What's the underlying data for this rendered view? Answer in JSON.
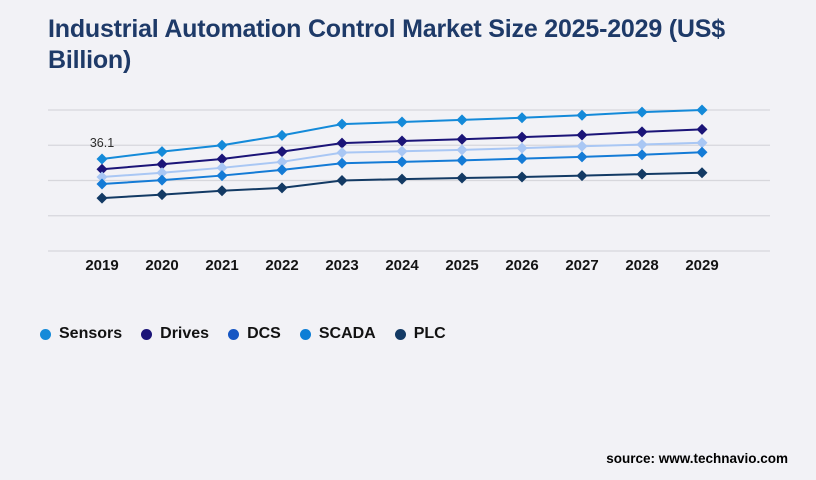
{
  "page": {
    "background": "#f2f2f6"
  },
  "header": {
    "title": "Industrial Automation Control Market Size 2025-2029 (US$ Billion)",
    "color": "#1e3a68"
  },
  "chart_data": {
    "type": "line",
    "title": "Industrial Automation Control Market Size 2025-2029 (US$ Billion)",
    "x": [
      2019,
      2020,
      2021,
      2022,
      2023,
      2024,
      2025,
      2026,
      2027,
      2028,
      2029
    ],
    "series": [
      {
        "name": "Sensors",
        "color": "#148ad9",
        "legend_color": "#148ad9",
        "values": [
          36.1,
          38.2,
          40.0,
          42.8,
          46.0,
          46.6,
          47.2,
          47.8,
          48.5,
          49.4,
          50.0
        ]
      },
      {
        "name": "Drives",
        "color": "#1b1478",
        "legend_color": "#1b1478",
        "values": [
          33.2,
          34.6,
          36.1,
          38.2,
          40.6,
          41.2,
          41.7,
          42.3,
          42.9,
          43.8,
          44.5
        ]
      },
      {
        "name": "DCS",
        "color": "#a9c7f4",
        "legend_color": "#1656c3",
        "values": [
          31.0,
          32.2,
          33.6,
          35.3,
          37.9,
          38.3,
          38.7,
          39.2,
          39.7,
          40.2,
          40.7
        ]
      },
      {
        "name": "SCADA",
        "color": "#147bd6",
        "legend_color": "#0d7ed6",
        "values": [
          29.0,
          30.1,
          31.4,
          33.0,
          34.9,
          35.3,
          35.7,
          36.2,
          36.7,
          37.3,
          38.0
        ]
      },
      {
        "name": "PLC",
        "color": "#133a64",
        "legend_color": "#133a64",
        "values": [
          25.0,
          26.0,
          27.1,
          27.9,
          30.0,
          30.4,
          30.7,
          31.0,
          31.4,
          31.8,
          32.2
        ]
      }
    ],
    "ylim": [
      10,
      50
    ],
    "grid_values": [
      10,
      20,
      30,
      40,
      50
    ],
    "grid_color": "#d7d7dc",
    "axis_tick_color": "#141414",
    "marker": "diamond",
    "legend_position": "bottom-left",
    "annotations": [
      {
        "series": "Sensors",
        "x": 2019,
        "text": "36.1"
      }
    ]
  },
  "footer": {
    "source_label": "source: www.technavio.com"
  }
}
